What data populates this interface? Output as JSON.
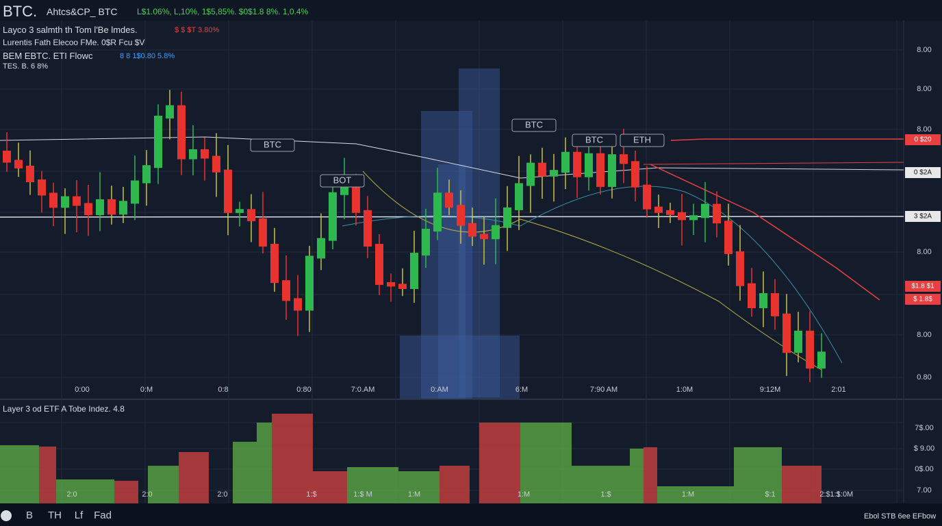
{
  "header": {
    "symbol": "BTC.",
    "pair": "Ahtcs&CP_ BTC",
    "changes": "L$1.06%, L,10%, 1$5,85%. $0$1.8 8%. 1,0.4%"
  },
  "legend": [
    "Layco 3 salmth th Tom l'Be lmdes.",
    "Lurentis Fath Elecoo FMe. 0$R Fcu $V",
    "BEM EBTC. ETI Flowc",
    "8 8 1$0.80 5.8%",
    "TES. B. 6 8%"
  ],
  "legend_alert": "$ $ $T 3.80%",
  "price_axis": [
    "8.00",
    "8.00",
    "8.00",
    "8.00",
    "8.00",
    "0.80"
  ],
  "price_tags": [
    "0 $20",
    "0 $2A",
    "3 $2A",
    "$1.8 $1",
    "$ 1.8$"
  ],
  "time_axis": [
    "0:00",
    "0:M",
    "0:8",
    "0:80",
    "7:0.AM",
    "0:AM",
    "6:M",
    "7:90 AM",
    "1:0M",
    "9:12M",
    "2:01"
  ],
  "chart_labels": [
    "BTC",
    "BOT",
    "BTC",
    "BTC",
    "ETH"
  ],
  "volume_pane": {
    "title": "Layer 3 od ETF A Tobe Indez.  4.8",
    "axis": [
      "7$.00",
      "$ 9.00",
      "0$.00",
      "7.00"
    ],
    "bar_labels": [
      "2:0",
      "2:0",
      "2:0",
      "1:$",
      "1:$ M",
      "1:M",
      "1:M",
      "1:$",
      "1:M",
      "$:1",
      "2:$",
      "1:$",
      "1:0M"
    ]
  },
  "footer": {
    "tabs": [
      "B",
      "TH",
      "Lf",
      "Fad"
    ],
    "right": "Ebol STB 6ee EFbow"
  }
}
